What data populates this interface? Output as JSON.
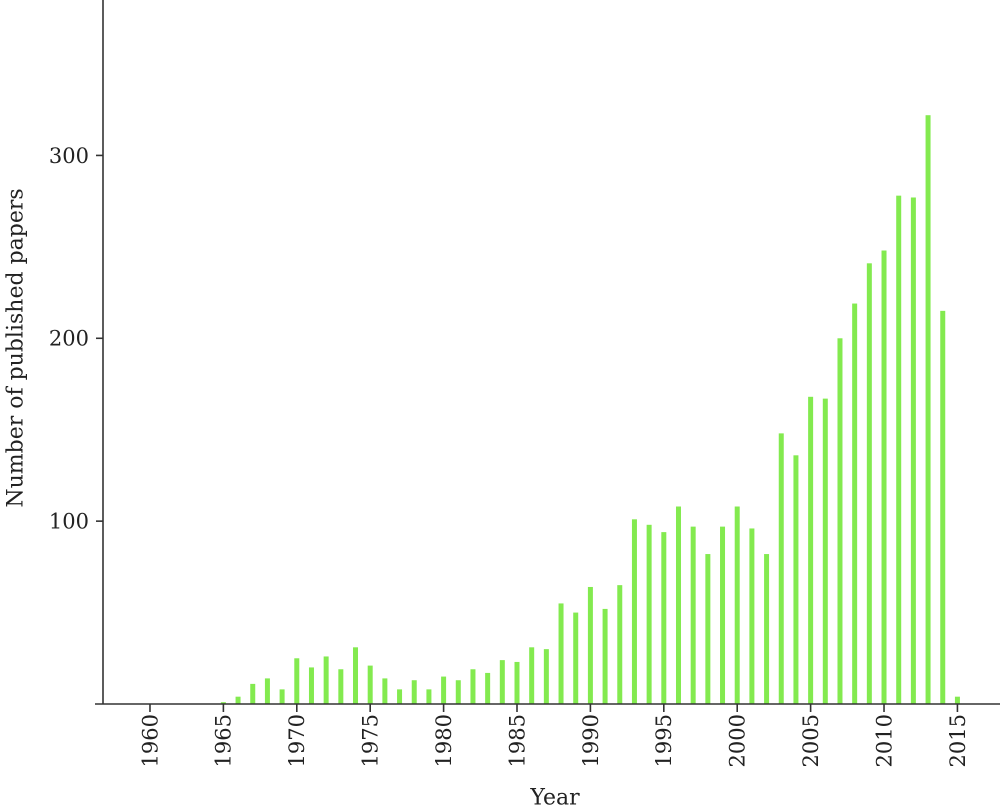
{
  "chart_data": {
    "type": "bar",
    "xlabel": "Year",
    "ylabel": "Number of published papers",
    "x": [
      1965,
      1966,
      1967,
      1968,
      1969,
      1970,
      1971,
      1972,
      1973,
      1974,
      1975,
      1976,
      1977,
      1978,
      1979,
      1980,
      1981,
      1982,
      1983,
      1984,
      1985,
      1986,
      1987,
      1988,
      1989,
      1990,
      1991,
      1992,
      1993,
      1994,
      1995,
      1996,
      1997,
      1998,
      1999,
      2000,
      2001,
      2002,
      2003,
      2004,
      2005,
      2006,
      2007,
      2008,
      2009,
      2010,
      2011,
      2012,
      2013,
      2014,
      2015
    ],
    "values": [
      1,
      4,
      11,
      14,
      8,
      25,
      20,
      26,
      19,
      31,
      21,
      14,
      8,
      13,
      8,
      15,
      13,
      19,
      17,
      24,
      23,
      31,
      30,
      55,
      50,
      64,
      52,
      65,
      101,
      98,
      94,
      108,
      97,
      82,
      97,
      108,
      96,
      82,
      148,
      136,
      168,
      167,
      200,
      219,
      241,
      248,
      278,
      277,
      322,
      215,
      4
    ],
    "xticks": [
      1960,
      1965,
      1970,
      1975,
      1980,
      1985,
      1990,
      1995,
      2000,
      2005,
      2010,
      2015
    ],
    "yticks": [
      100,
      200,
      300
    ],
    "xlim": [
      1956.8,
      2017.9
    ],
    "ylim": [
      0,
      385
    ],
    "grid": false,
    "legend": "none",
    "bar_color": "#83ea4f",
    "axis_color": "#333333",
    "text_color": "#222222"
  }
}
